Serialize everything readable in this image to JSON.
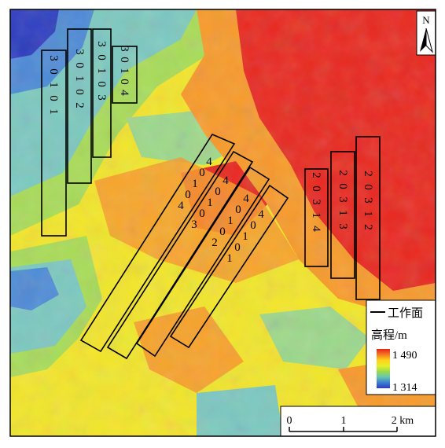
{
  "north_arrow": {
    "label": "N"
  },
  "legend": {
    "line_label": "工作面",
    "elevation_title": "高程/m",
    "max_value": "1 490",
    "min_value": "1 314",
    "ramp_colors": [
      "#e8231c",
      "#f57a22",
      "#ffd21a",
      "#e8ee2a",
      "#9bdb49",
      "#66c6b0",
      "#3a7fd0",
      "#2e3bbf"
    ]
  },
  "scale_bar": {
    "ticks": [
      "0",
      "1",
      "2 km"
    ]
  },
  "panels": [
    {
      "id": "30101",
      "digits": [
        "3",
        "0",
        "1",
        "0",
        "1"
      ]
    },
    {
      "id": "30102",
      "digits": [
        "3",
        "0",
        "1",
        "0",
        "2"
      ]
    },
    {
      "id": "30103",
      "digits": [
        "3",
        "0",
        "1",
        "0",
        "3"
      ]
    },
    {
      "id": "30104",
      "digits": [
        "3",
        "0",
        "1",
        "0",
        "4"
      ]
    },
    {
      "id": "20314",
      "digits": [
        "2",
        "0",
        "3",
        "1",
        "4"
      ]
    },
    {
      "id": "20313",
      "digits": [
        "2",
        "0",
        "3",
        "1",
        "3"
      ]
    },
    {
      "id": "20312",
      "digits": [
        "2",
        "0",
        "3",
        "1",
        "2"
      ]
    },
    {
      "id": "40104",
      "digits": [
        "4",
        "0",
        "1",
        "0",
        "4"
      ]
    },
    {
      "id": "40103",
      "digits": [
        "4",
        "0",
        "1",
        "0",
        "3"
      ]
    },
    {
      "id": "40102",
      "digits": [
        "4",
        "0",
        "1",
        "0",
        "2"
      ]
    },
    {
      "id": "40101",
      "digits": [
        "4",
        "0",
        "1",
        "0",
        "1"
      ]
    }
  ],
  "colors": {
    "deep_blue": "#2c3cc0",
    "blue": "#4d8ad6",
    "teal": "#7cc8c0",
    "green": "#a8dc57",
    "yellow": "#f3e629",
    "orange": "#f89a2a",
    "red": "#e9281f",
    "frame": "#000000"
  }
}
